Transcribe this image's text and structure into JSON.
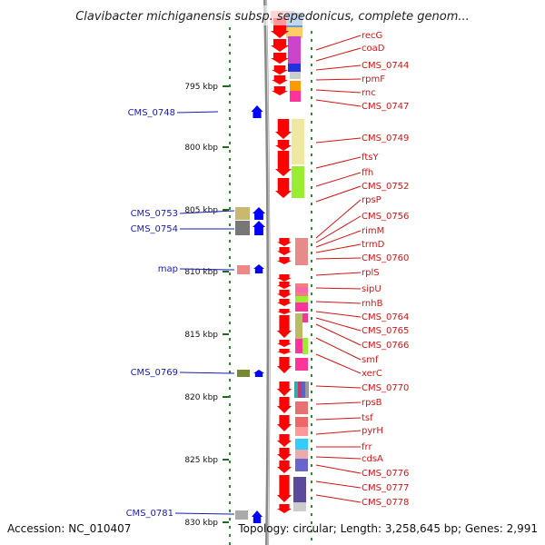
{
  "title": "Clavibacter michiganensis subsp. sepedonicus, complete genom...",
  "footer": {
    "accession": "Accession: NC_010407",
    "topology": "Topology: circular; Length: 3,258,645 bp; Genes: 2,991"
  },
  "colors": {
    "forward_arrow": "#ff0000",
    "reverse_arrow": "#0000ff",
    "left_label": "#1a1ab4",
    "right_label": "#d41414",
    "axis_dots": "#2e8b2e",
    "backbone": "#8a8a8a"
  },
  "kbp_ticks": [
    "795 kbp",
    "800 kbp",
    "805 kbp",
    "810 kbp",
    "815 kbp",
    "820 kbp",
    "825 kbp",
    "830 kbp"
  ],
  "left_genes": [
    "CMS_0748",
    "CMS_0753",
    "CMS_0754",
    "map",
    "CMS_0769",
    "CMS_0781"
  ],
  "right_genes": [
    "recG",
    "coaD",
    "CMS_0744",
    "rpmF",
    "rnc",
    "CMS_0747",
    "CMS_0749",
    "ftsY",
    "ffh",
    "CMS_0752",
    "rpsP",
    "CMS_0756",
    "rimM",
    "trmD",
    "CMS_0760",
    "rplS",
    "sipU",
    "rnhB",
    "CMS_0764",
    "CMS_0765",
    "CMS_0766",
    "smf",
    "xerC",
    "CMS_0770",
    "rpsB",
    "tsf",
    "pyrH",
    "frr",
    "cdsA",
    "CMS_0776",
    "CMS_0777",
    "CMS_0778"
  ]
}
